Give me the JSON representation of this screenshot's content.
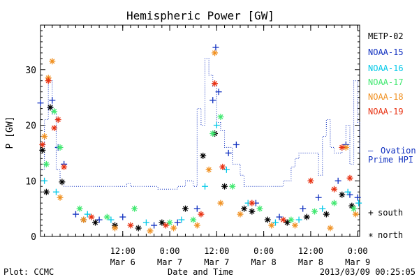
{
  "chart_data": {
    "type": "scatter",
    "title": "Hemispheric Power [GW]",
    "ylabel": "P [GW]",
    "xlabel": "Date and Time",
    "ylim": [
      0,
      38
    ],
    "yticks": [
      0,
      10,
      20,
      30
    ],
    "xlim": [
      "2013-03-05 15:00",
      "2013-03-09 00:30"
    ],
    "xticks": [
      {
        "t": "2013-03-06 12:00",
        "line1": "12:00",
        "line2": "Mar 6"
      },
      {
        "t": "2013-03-07 00:00",
        "line1": "0:00",
        "line2": "Mar 7"
      },
      {
        "t": "2013-03-07 12:00",
        "line1": "12:00",
        "line2": "Mar 7"
      },
      {
        "t": "2013-03-08 00:00",
        "line1": "0:00",
        "line2": "Mar 8"
      },
      {
        "t": "2013-03-08 12:00",
        "line1": "12:00",
        "line2": "Mar 8"
      },
      {
        "t": "2013-03-09 00:00",
        "line1": "0:00",
        "line2": "Mar 9"
      }
    ],
    "legend_position": "right",
    "series": [
      {
        "name": "METP-02",
        "color": "#000000",
        "marker": "asterisk",
        "points": [
          [
            "2013-03-05 15:30",
            15.5
          ],
          [
            "2013-03-05 17:30",
            23.2
          ],
          [
            "2013-03-05 20:30",
            9.8
          ],
          [
            "2013-03-06 02:00",
            3.0
          ],
          [
            "2013-03-06 10:00",
            2.0
          ],
          [
            "2013-03-06 16:00",
            1.5
          ],
          [
            "2013-03-06 22:00",
            2.5
          ],
          [
            "2013-03-07 04:00",
            5.0
          ],
          [
            "2013-03-07 08:30",
            14.5
          ],
          [
            "2013-03-07 11:30",
            18.5
          ],
          [
            "2013-03-07 14:00",
            9.0
          ],
          [
            "2013-03-07 19:00",
            5.0
          ],
          [
            "2013-03-08 01:00",
            3.0
          ],
          [
            "2013-03-08 06:00",
            2.5
          ],
          [
            "2013-03-08 11:00",
            3.5
          ],
          [
            "2013-03-08 16:00",
            4.0
          ],
          [
            "2013-03-08 20:00",
            7.5
          ],
          [
            "2013-03-08 22:30",
            5.5
          ],
          [
            "2013-03-05 16:30",
            8.0
          ],
          [
            "2013-03-06 05:00",
            2.5
          ],
          [
            "2013-03-07 21:00",
            4.5
          ]
        ]
      },
      {
        "name": "NOAA-15",
        "color": "#1030c0",
        "marker": "plus",
        "points": [
          [
            "2013-03-05 15:00",
            24.0
          ],
          [
            "2013-03-05 18:00",
            24.5
          ],
          [
            "2013-03-05 19:30",
            16.0
          ],
          [
            "2013-03-05 21:00",
            13.0
          ],
          [
            "2013-03-06 00:00",
            4.0
          ],
          [
            "2013-03-06 06:00",
            3.0
          ],
          [
            "2013-03-06 12:00",
            3.5
          ],
          [
            "2013-03-06 20:00",
            2.0
          ],
          [
            "2013-03-07 02:00",
            2.5
          ],
          [
            "2013-03-07 07:00",
            5.0
          ],
          [
            "2013-03-07 11:00",
            24.5
          ],
          [
            "2013-03-07 11:45",
            34.0
          ],
          [
            "2013-03-07 12:30",
            26.0
          ],
          [
            "2013-03-07 15:00",
            15.0
          ],
          [
            "2013-03-07 17:00",
            16.5
          ],
          [
            "2013-03-07 22:00",
            6.0
          ],
          [
            "2013-03-08 04:00",
            3.5
          ],
          [
            "2013-03-08 10:00",
            5.0
          ],
          [
            "2013-03-08 14:00",
            7.0
          ],
          [
            "2013-03-08 19:00",
            10.0
          ],
          [
            "2013-03-08 21:00",
            16.5
          ],
          [
            "2013-03-08 22:00",
            7.5
          ],
          [
            "2013-03-09 00:00",
            7.0
          ]
        ]
      },
      {
        "name": "NOAA-16",
        "color": "#00c8e8",
        "marker": "plus",
        "points": [
          [
            "2013-03-05 16:00",
            10.0
          ],
          [
            "2013-03-05 19:00",
            8.0
          ],
          [
            "2013-03-06 03:00",
            4.0
          ],
          [
            "2013-03-06 09:00",
            3.0
          ],
          [
            "2013-03-06 18:00",
            2.5
          ],
          [
            "2013-03-07 03:00",
            3.0
          ],
          [
            "2013-03-07 09:00",
            9.0
          ],
          [
            "2013-03-07 12:00",
            20.0
          ],
          [
            "2013-03-07 14:30",
            12.0
          ],
          [
            "2013-03-07 20:00",
            6.0
          ],
          [
            "2013-03-08 03:00",
            2.5
          ],
          [
            "2013-03-08 09:00",
            3.0
          ],
          [
            "2013-03-08 15:00",
            5.0
          ],
          [
            "2013-03-08 21:30",
            8.0
          ],
          [
            "2013-03-09 00:15",
            6.0
          ]
        ]
      },
      {
        "name": "NOAA-17",
        "color": "#40e870",
        "marker": "asterisk",
        "points": [
          [
            "2013-03-05 16:30",
            13.0
          ],
          [
            "2013-03-05 18:30",
            22.5
          ],
          [
            "2013-03-05 20:00",
            16.0
          ],
          [
            "2013-03-06 01:00",
            5.0
          ],
          [
            "2013-03-06 08:00",
            3.5
          ],
          [
            "2013-03-06 15:00",
            5.0
          ],
          [
            "2013-03-07 00:00",
            2.5
          ],
          [
            "2013-03-07 06:00",
            3.0
          ],
          [
            "2013-03-07 11:00",
            18.5
          ],
          [
            "2013-03-07 13:00",
            21.5
          ],
          [
            "2013-03-07 16:00",
            9.0
          ],
          [
            "2013-03-07 23:00",
            5.0
          ],
          [
            "2013-03-08 07:00",
            3.0
          ],
          [
            "2013-03-08 13:00",
            4.5
          ],
          [
            "2013-03-08 18:00",
            6.0
          ],
          [
            "2013-03-08 23:00",
            5.0
          ]
        ]
      },
      {
        "name": "NOAA-18",
        "color": "#f09020",
        "marker": "asterisk",
        "points": [
          [
            "2013-03-05 16:00",
            18.0
          ],
          [
            "2013-03-05 17:00",
            28.5
          ],
          [
            "2013-03-05 18:00",
            31.5
          ],
          [
            "2013-03-05 20:00",
            7.0
          ],
          [
            "2013-03-06 02:00",
            3.0
          ],
          [
            "2013-03-06 10:00",
            1.5
          ],
          [
            "2013-03-06 19:00",
            1.0
          ],
          [
            "2013-03-07 01:00",
            1.5
          ],
          [
            "2013-03-07 07:00",
            2.0
          ],
          [
            "2013-03-07 10:00",
            12.0
          ],
          [
            "2013-03-07 11:30",
            33.0
          ],
          [
            "2013-03-07 13:00",
            6.0
          ],
          [
            "2013-03-07 18:00",
            4.0
          ],
          [
            "2013-03-08 02:00",
            2.0
          ],
          [
            "2013-03-08 08:00",
            2.0
          ],
          [
            "2013-03-08 17:00",
            1.5
          ],
          [
            "2013-03-08 21:00",
            16.0
          ],
          [
            "2013-03-08 23:30",
            4.0
          ]
        ]
      },
      {
        "name": "NOAA-19",
        "color": "#e83010",
        "marker": "asterisk",
        "points": [
          [
            "2013-03-05 15:30",
            16.5
          ],
          [
            "2013-03-05 17:00",
            28.0
          ],
          [
            "2013-03-05 18:30",
            19.5
          ],
          [
            "2013-03-05 19:30",
            21.0
          ],
          [
            "2013-03-05 21:00",
            12.5
          ],
          [
            "2013-03-06 04:00",
            3.5
          ],
          [
            "2013-03-06 14:00",
            2.0
          ],
          [
            "2013-03-06 23:00",
            2.0
          ],
          [
            "2013-03-07 08:00",
            4.0
          ],
          [
            "2013-03-07 11:30",
            27.5
          ],
          [
            "2013-03-07 13:30",
            12.5
          ],
          [
            "2013-03-07 21:00",
            6.0
          ],
          [
            "2013-03-08 05:00",
            3.0
          ],
          [
            "2013-03-08 12:00",
            10.0
          ],
          [
            "2013-03-08 18:00",
            8.5
          ],
          [
            "2013-03-08 20:00",
            16.0
          ],
          [
            "2013-03-08 22:00",
            10.5
          ]
        ]
      },
      {
        "name": "Ovation Prime HPI",
        "color": "#1030c0",
        "marker": "none",
        "style": "dotted-step",
        "points": [
          [
            "2013-03-05 15:00",
            12.0
          ],
          [
            "2013-03-05 16:00",
            21.0
          ],
          [
            "2013-03-05 17:00",
            28.0
          ],
          [
            "2013-03-05 18:00",
            22.0
          ],
          [
            "2013-03-05 19:00",
            12.0
          ],
          [
            "2013-03-05 20:00",
            10.0
          ],
          [
            "2013-03-05 21:00",
            9.0
          ],
          [
            "2013-03-06 12:00",
            9.0
          ],
          [
            "2013-03-06 13:00",
            9.5
          ],
          [
            "2013-03-06 14:00",
            9.0
          ],
          [
            "2013-03-06 20:00",
            9.0
          ],
          [
            "2013-03-06 21:00",
            8.5
          ],
          [
            "2013-03-07 02:00",
            9.0
          ],
          [
            "2013-03-07 04:00",
            10.0
          ],
          [
            "2013-03-07 06:00",
            9.0
          ],
          [
            "2013-03-07 07:00",
            23.0
          ],
          [
            "2013-03-07 08:00",
            20.0
          ],
          [
            "2013-03-07 09:00",
            32.0
          ],
          [
            "2013-03-07 10:00",
            29.0
          ],
          [
            "2013-03-07 11:00",
            27.0
          ],
          [
            "2013-03-07 12:00",
            20.5
          ],
          [
            "2013-03-07 13:00",
            19.0
          ],
          [
            "2013-03-07 14:00",
            16.0
          ],
          [
            "2013-03-07 16:00",
            13.0
          ],
          [
            "2013-03-07 18:00",
            11.0
          ],
          [
            "2013-03-07 19:00",
            9.0
          ],
          [
            "2013-03-08 04:00",
            9.0
          ],
          [
            "2013-03-08 05:00",
            10.0
          ],
          [
            "2013-03-08 07:00",
            12.5
          ],
          [
            "2013-03-08 08:00",
            14.0
          ],
          [
            "2013-03-08 09:00",
            15.0
          ],
          [
            "2013-03-08 12:00",
            15.0
          ],
          [
            "2013-03-08 14:00",
            11.0
          ],
          [
            "2013-03-08 15:00",
            18.0
          ],
          [
            "2013-03-08 16:00",
            21.0
          ],
          [
            "2013-03-08 17:00",
            16.0
          ],
          [
            "2013-03-08 18:00",
            15.0
          ],
          [
            "2013-03-08 20:00",
            16.5
          ],
          [
            "2013-03-08 21:00",
            20.0
          ],
          [
            "2013-03-08 22:00",
            13.0
          ],
          [
            "2013-03-08 23:00",
            28.0
          ],
          [
            "2013-03-09 00:00",
            20.5
          ],
          [
            "2013-03-09 00:30",
            15.0
          ]
        ]
      }
    ]
  },
  "legend_items": [
    "METP-02",
    "NOAA-15",
    "NOAA-16",
    "NOAA-17",
    "NOAA-18",
    "NOAA-19"
  ],
  "legend_colors": [
    "#000000",
    "#1030c0",
    "#00c8e8",
    "#40e870",
    "#f09020",
    "#e83010"
  ],
  "ovation_legend": {
    "dash": "—",
    "line1": "Ovation",
    "line2": "Prime HPI",
    "color": "#1030c0"
  },
  "marker_legend": {
    "south_symbol": "+",
    "south_label": "south",
    "north_symbol": "*",
    "north_label": "north"
  },
  "footer": {
    "left": "Plot: CCMC",
    "right": "2013/03/09 00:25:05"
  }
}
